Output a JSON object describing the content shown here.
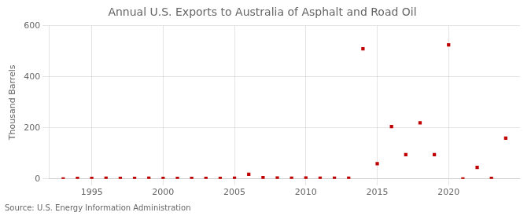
{
  "chart_data": {
    "type": "scatter",
    "title": "Annual U.S. Exports to Australia of Asphalt and Road Oil",
    "ylabel": "Thousand Barrels",
    "source": "Source: U.S. Energy Information Administration",
    "x": [
      1993,
      1994,
      1995,
      1996,
      1997,
      1998,
      1999,
      2000,
      2001,
      2002,
      2003,
      2004,
      2005,
      2006,
      2007,
      2008,
      2009,
      2010,
      2011,
      2012,
      2013,
      2014,
      2015,
      2016,
      2017,
      2018,
      2019,
      2020,
      2021,
      2022,
      2023,
      2024
    ],
    "values": [
      0,
      2,
      2,
      3,
      2,
      2,
      3,
      2,
      2,
      2,
      2,
      2,
      3,
      18,
      5,
      4,
      3,
      4,
      3,
      3,
      3,
      510,
      60,
      205,
      95,
      220,
      95,
      525,
      0,
      45,
      2,
      160
    ],
    "color": "#c00000",
    "marker": "square",
    "xlim": [
      1992,
      2025
    ],
    "xticks": [
      1995,
      2000,
      2005,
      2010,
      2015,
      2020
    ],
    "ylim": [
      0,
      600
    ],
    "yticks": [
      0,
      200,
      400,
      600
    ],
    "grid": true
  }
}
